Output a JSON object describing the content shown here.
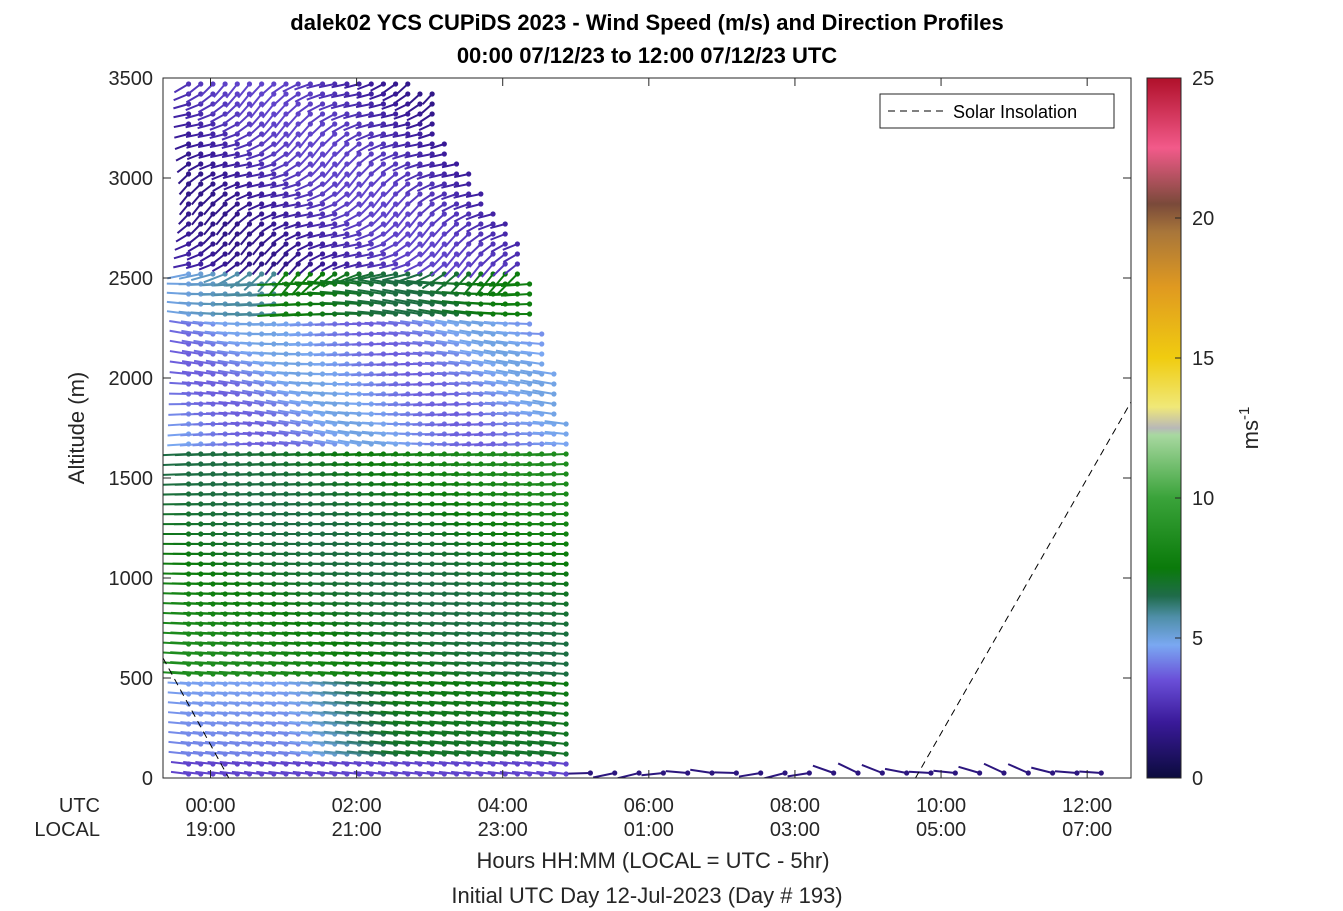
{
  "chart_data": {
    "type": "scatter",
    "subtype": "wind-barb-profile",
    "title_line1": "dalek02 YCS CUPiDS 2023 - Wind Speed (m/s) and Direction Profiles",
    "title_line2": "00:00 07/12/23 to 12:00 07/12/23  UTC",
    "ylabel": "Altitude (m)",
    "xlabel_line1": "Hours HH:MM  (LOCAL = UTC - 5hr)",
    "xlabel_line2": "Initial UTC Day 12-Jul-2023 (Day # 193)",
    "row_label_utc": "UTC",
    "row_label_local": "LOCAL",
    "xlim_hours": [
      -0.65,
      12.6
    ],
    "ylim": [
      0,
      3500
    ],
    "y_ticks": [
      "0",
      "500",
      "1000",
      "1500",
      "2000",
      "2500",
      "3000",
      "3500"
    ],
    "y_tick_values": [
      0,
      500,
      1000,
      1500,
      2000,
      2500,
      3000,
      3500
    ],
    "x_tick_hours": [
      0,
      2,
      4,
      6,
      8,
      10,
      12
    ],
    "x_ticks_utc": [
      "00:00",
      "02:00",
      "04:00",
      "06:00",
      "08:00",
      "10:00",
      "12:00"
    ],
    "x_ticks_local": [
      "19:00",
      "21:00",
      "23:00",
      "01:00",
      "03:00",
      "05:00",
      "07:00"
    ],
    "colorbar": {
      "label": "ms",
      "label_sup": "-1",
      "range": [
        0,
        25
      ],
      "ticks": [
        "0",
        "5",
        "10",
        "15",
        "20",
        "25"
      ],
      "tick_values": [
        0,
        5,
        10,
        15,
        20,
        25
      ]
    },
    "legend": {
      "entry": "Solar Insolation",
      "placement": "top-right",
      "style": "dashed"
    },
    "solar_insolation": {
      "segments": [
        {
          "x_hours": [
            -0.65,
            0.25
          ],
          "y": [
            600,
            0
          ]
        },
        {
          "x_hours": [
            9.65,
            12.6
          ],
          "y": [
            0,
            1880
          ]
        }
      ]
    },
    "profiles_active_range_hours": [
      -0.3,
      5.0
    ],
    "profile_interval_hours": 0.1667,
    "surface_only_after_hours": 5.2,
    "layers": [
      {
        "z": [
          0,
          450
        ],
        "speed": 3.5,
        "note": "near-surface light blue/purple"
      },
      {
        "z": [
          450,
          1650
        ],
        "speed": 7.5,
        "note": "green low-level jet"
      },
      {
        "z": [
          1650,
          2500
        ],
        "speed": 4.0,
        "note": "blue/purple"
      },
      {
        "z": [
          2500,
          3500
        ],
        "speed": 2.5,
        "note": "dark purple aloft"
      }
    ]
  }
}
